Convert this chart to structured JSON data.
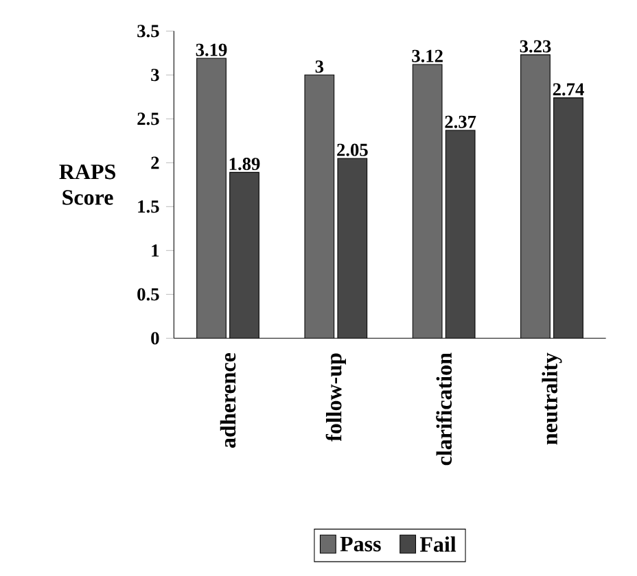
{
  "chart_data": {
    "type": "bar",
    "ylabel": "RAPS Score",
    "categories": [
      "adherence",
      "follow-up",
      "clarification",
      "neutrality"
    ],
    "series": [
      {
        "name": "Pass",
        "color": "#6b6b6b",
        "values": [
          3.19,
          3,
          3.12,
          3.23
        ]
      },
      {
        "name": "Fail",
        "color": "#474747",
        "values": [
          1.89,
          2.05,
          2.37,
          2.74
        ]
      }
    ],
    "ylim": [
      0,
      3.5
    ],
    "yticks": [
      0,
      0.5,
      1,
      1.5,
      2,
      2.5,
      3,
      3.5
    ],
    "data_labels": true,
    "legend": "bottom",
    "grid": false
  }
}
